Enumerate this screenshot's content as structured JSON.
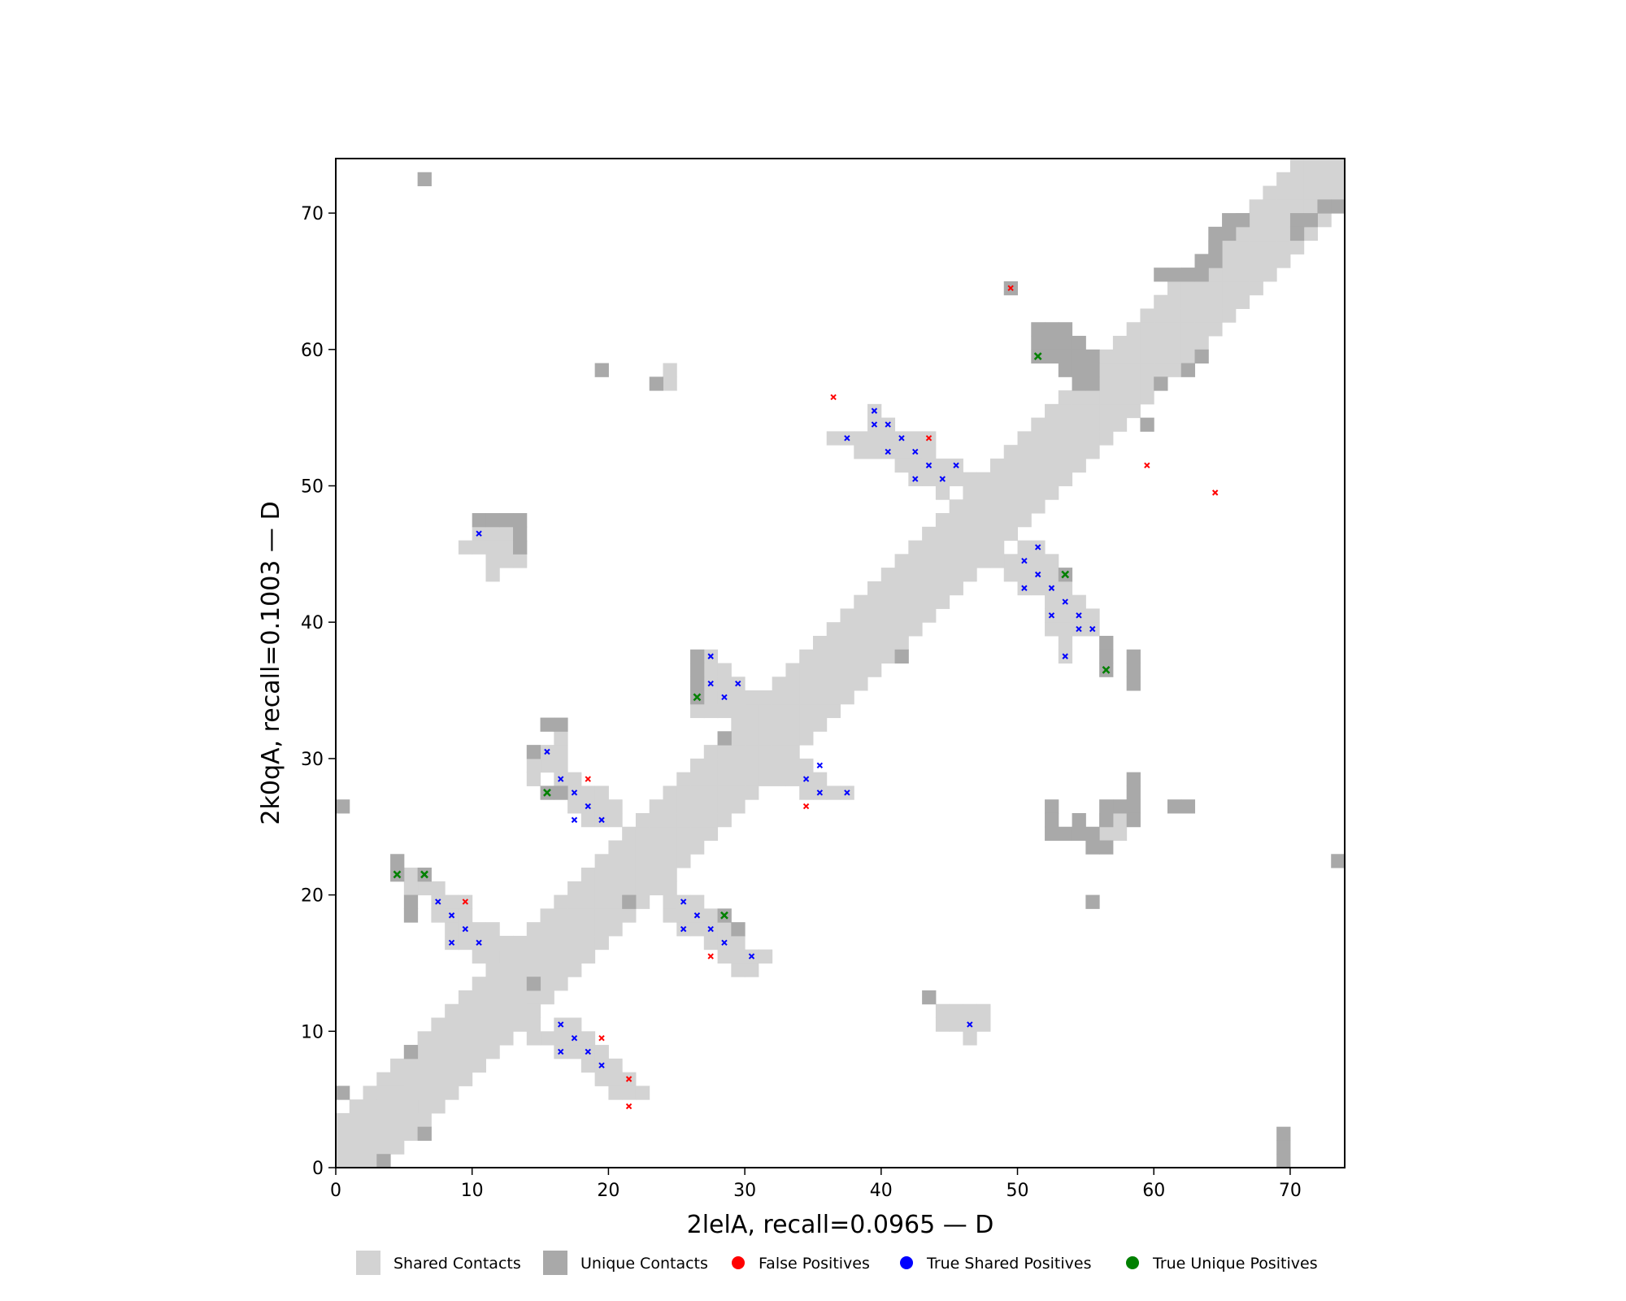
{
  "chart_data": {
    "type": "heatmap",
    "title": "",
    "xlabel": "2lelA, recall=0.0965 — D",
    "ylabel": "2k0qA, recall=0.1003 — D",
    "xlim": [
      0,
      74
    ],
    "ylim": [
      0,
      74
    ],
    "xticks": [
      0,
      10,
      20,
      30,
      40,
      50,
      60,
      70
    ],
    "yticks": [
      0,
      10,
      20,
      30,
      40,
      50,
      60,
      70
    ],
    "colors": {
      "shared": "#d3d3d3",
      "unique": "#a9a9a9",
      "false_positive": "#ff0000",
      "true_shared": "#0000ff",
      "true_unique": "#008000"
    },
    "legend": {
      "placement": "bottom",
      "items": [
        {
          "label": "Shared Contacts",
          "kind": "square",
          "color": "#d3d3d3"
        },
        {
          "label": "Unique Contacts",
          "kind": "square",
          "color": "#a9a9a9"
        },
        {
          "label": "False Positives",
          "kind": "dot",
          "color": "#ff0000"
        },
        {
          "label": "True Shared Positives",
          "kind": "dot",
          "color": "#0000ff"
        },
        {
          "label": "True Unique Positives",
          "kind": "dot",
          "color": "#008000"
        }
      ]
    },
    "diagonal_band": {
      "start": 0,
      "end": 74,
      "half_width": 3
    },
    "shared_contacts": [
      [
        16,
        10
      ],
      [
        17,
        10
      ],
      [
        16,
        9
      ],
      [
        17,
        9
      ],
      [
        18,
        9
      ],
      [
        17,
        8
      ],
      [
        18,
        8
      ],
      [
        19,
        8
      ],
      [
        18,
        7
      ],
      [
        19,
        7
      ],
      [
        20,
        7
      ],
      [
        19,
        6
      ],
      [
        20,
        6
      ],
      [
        21,
        6
      ],
      [
        20,
        5
      ],
      [
        21,
        5
      ],
      [
        22,
        5
      ],
      [
        15,
        9
      ],
      [
        14,
        10
      ],
      [
        14,
        11
      ],
      [
        14,
        9
      ],
      [
        16,
        8
      ],
      [
        10,
        16
      ],
      [
        10,
        17
      ],
      [
        9,
        17
      ],
      [
        9,
        18
      ],
      [
        8,
        18
      ],
      [
        8,
        19
      ],
      [
        7,
        19
      ],
      [
        7,
        20
      ],
      [
        6,
        20
      ],
      [
        6,
        21
      ],
      [
        5,
        21
      ],
      [
        5,
        20
      ],
      [
        8,
        17
      ],
      [
        9,
        16
      ],
      [
        10,
        15
      ],
      [
        11,
        15
      ],
      [
        11,
        16
      ],
      [
        11,
        17
      ],
      [
        12,
        16
      ],
      [
        7,
        18
      ],
      [
        8,
        16
      ],
      [
        9,
        19
      ],
      [
        25,
        19
      ],
      [
        26,
        19
      ],
      [
        25,
        18
      ],
      [
        26,
        18
      ],
      [
        27,
        18
      ],
      [
        25,
        17
      ],
      [
        26,
        17
      ],
      [
        27,
        17
      ],
      [
        28,
        17
      ],
      [
        27,
        16
      ],
      [
        28,
        16
      ],
      [
        29,
        16
      ],
      [
        28,
        15
      ],
      [
        29,
        15
      ],
      [
        30,
        15
      ],
      [
        31,
        15
      ],
      [
        29,
        14
      ],
      [
        30,
        14
      ],
      [
        24,
        18
      ],
      [
        24,
        19
      ],
      [
        24,
        20
      ],
      [
        15,
        30
      ],
      [
        16,
        30
      ],
      [
        15,
        29
      ],
      [
        16,
        29
      ],
      [
        16,
        28
      ],
      [
        17,
        28
      ],
      [
        17,
        27
      ],
      [
        18,
        27
      ],
      [
        17,
        26
      ],
      [
        18,
        26
      ],
      [
        19,
        26
      ],
      [
        18,
        25
      ],
      [
        19,
        25
      ],
      [
        20,
        25
      ],
      [
        14,
        29
      ],
      [
        14,
        28
      ],
      [
        20,
        26
      ],
      [
        19,
        27
      ],
      [
        16,
        31
      ],
      [
        27,
        37
      ],
      [
        27,
        36
      ],
      [
        28,
        36
      ],
      [
        27,
        35
      ],
      [
        28,
        35
      ],
      [
        29,
        35
      ],
      [
        27,
        34
      ],
      [
        28,
        34
      ],
      [
        29,
        34
      ],
      [
        30,
        34
      ],
      [
        28,
        33
      ],
      [
        29,
        33
      ],
      [
        27,
        33
      ],
      [
        26,
        33
      ],
      [
        34,
        29
      ],
      [
        34,
        28
      ],
      [
        35,
        28
      ],
      [
        33,
        28
      ],
      [
        35,
        27
      ],
      [
        36,
        27
      ],
      [
        37,
        27
      ],
      [
        32,
        28
      ],
      [
        32,
        29
      ],
      [
        33,
        29
      ],
      [
        34,
        27
      ],
      [
        37,
        53
      ],
      [
        38,
        53
      ],
      [
        39,
        53
      ],
      [
        39,
        54
      ],
      [
        40,
        54
      ],
      [
        39,
        55
      ],
      [
        40,
        53
      ],
      [
        40,
        52
      ],
      [
        41,
        52
      ],
      [
        41,
        53
      ],
      [
        42,
        53
      ],
      [
        42,
        52
      ],
      [
        42,
        51
      ],
      [
        43,
        51
      ],
      [
        43,
        52
      ],
      [
        43,
        53
      ],
      [
        42,
        50
      ],
      [
        43,
        50
      ],
      [
        44,
        50
      ],
      [
        44,
        51
      ],
      [
        45,
        51
      ],
      [
        45,
        50
      ],
      [
        44,
        49
      ],
      [
        36,
        53
      ],
      [
        38,
        52
      ],
      [
        39,
        52
      ],
      [
        41,
        51
      ],
      [
        46,
        50
      ],
      [
        50,
        45
      ],
      [
        51,
        45
      ],
      [
        50,
        44
      ],
      [
        51,
        44
      ],
      [
        52,
        44
      ],
      [
        50,
        43
      ],
      [
        51,
        43
      ],
      [
        52,
        43
      ],
      [
        50,
        42
      ],
      [
        51,
        42
      ],
      [
        52,
        42
      ],
      [
        53,
        42
      ],
      [
        52,
        41
      ],
      [
        53,
        41
      ],
      [
        54,
        41
      ],
      [
        52,
        40
      ],
      [
        53,
        40
      ],
      [
        54,
        40
      ],
      [
        55,
        40
      ],
      [
        52,
        39
      ],
      [
        53,
        39
      ],
      [
        54,
        39
      ],
      [
        55,
        39
      ],
      [
        53,
        38
      ],
      [
        53,
        37
      ],
      [
        49,
        44
      ],
      [
        49,
        43
      ],
      [
        48,
        44
      ],
      [
        46,
        11
      ],
      [
        47,
        11
      ],
      [
        46,
        10
      ],
      [
        47,
        10
      ],
      [
        46,
        9
      ],
      [
        45,
        11
      ],
      [
        45,
        10
      ],
      [
        44,
        11
      ],
      [
        44,
        10
      ],
      [
        10,
        46
      ],
      [
        11,
        46
      ],
      [
        12,
        46
      ],
      [
        10,
        45
      ],
      [
        11,
        45
      ],
      [
        12,
        45
      ],
      [
        13,
        45
      ],
      [
        11,
        44
      ],
      [
        12,
        44
      ],
      [
        11,
        43
      ],
      [
        9,
        45
      ],
      [
        13,
        44
      ],
      [
        56,
        25
      ],
      [
        57,
        25
      ],
      [
        56,
        24
      ],
      [
        57,
        24
      ],
      [
        24,
        58
      ],
      [
        24,
        57
      ],
      [
        4,
        5
      ],
      [
        5,
        4
      ],
      [
        3,
        5
      ]
    ],
    "unique_contacts": [
      [
        6,
        72
      ],
      [
        19,
        58
      ],
      [
        23,
        57
      ],
      [
        0,
        26
      ],
      [
        0,
        5
      ],
      [
        3,
        0
      ],
      [
        6,
        2
      ],
      [
        5,
        8
      ],
      [
        14,
        13
      ],
      [
        10,
        47
      ],
      [
        11,
        47
      ],
      [
        12,
        47
      ],
      [
        13,
        47
      ],
      [
        13,
        46
      ],
      [
        13,
        45
      ],
      [
        15,
        32
      ],
      [
        16,
        32
      ],
      [
        14,
        30
      ],
      [
        16,
        27
      ],
      [
        15,
        27
      ],
      [
        26,
        37
      ],
      [
        26,
        36
      ],
      [
        26,
        35
      ],
      [
        26,
        34
      ],
      [
        28,
        31
      ],
      [
        21,
        19
      ],
      [
        28,
        18
      ],
      [
        29,
        17
      ],
      [
        4,
        22
      ],
      [
        4,
        21
      ],
      [
        6,
        21
      ],
      [
        5,
        19
      ],
      [
        5,
        18
      ],
      [
        41,
        37
      ],
      [
        53,
        43
      ],
      [
        56,
        38
      ],
      [
        56,
        37
      ],
      [
        56,
        36
      ],
      [
        58,
        37
      ],
      [
        58,
        36
      ],
      [
        58,
        35
      ],
      [
        51,
        61
      ],
      [
        52,
        61
      ],
      [
        53,
        61
      ],
      [
        51,
        60
      ],
      [
        52,
        60
      ],
      [
        53,
        60
      ],
      [
        54,
        60
      ],
      [
        51,
        59
      ],
      [
        52,
        59
      ],
      [
        53,
        59
      ],
      [
        54,
        59
      ],
      [
        55,
        59
      ],
      [
        53,
        58
      ],
      [
        54,
        58
      ],
      [
        55,
        58
      ],
      [
        54,
        57
      ],
      [
        55,
        57
      ],
      [
        59,
        54
      ],
      [
        60,
        57
      ],
      [
        62,
        58
      ],
      [
        63,
        59
      ],
      [
        49,
        64
      ],
      [
        60,
        65
      ],
      [
        61,
        65
      ],
      [
        62,
        65
      ],
      [
        63,
        65
      ],
      [
        63,
        66
      ],
      [
        64,
        66
      ],
      [
        64,
        67
      ],
      [
        64,
        68
      ],
      [
        65,
        68
      ],
      [
        65,
        69
      ],
      [
        66,
        69
      ],
      [
        70,
        69
      ],
      [
        71,
        69
      ],
      [
        70,
        68
      ],
      [
        72,
        70
      ],
      [
        73,
        70
      ],
      [
        52,
        26
      ],
      [
        52,
        25
      ],
      [
        52,
        24
      ],
      [
        53,
        24
      ],
      [
        54,
        24
      ],
      [
        55,
        24
      ],
      [
        55,
        23
      ],
      [
        56,
        23
      ],
      [
        56,
        25
      ],
      [
        57,
        26
      ],
      [
        58,
        26
      ],
      [
        58,
        25
      ],
      [
        58,
        27
      ],
      [
        58,
        28
      ],
      [
        54,
        25
      ],
      [
        56,
        26
      ],
      [
        61,
        26
      ],
      [
        62,
        26
      ],
      [
        55,
        19
      ],
      [
        73,
        22
      ],
      [
        43,
        12
      ],
      [
        69,
        0
      ],
      [
        69,
        1
      ],
      [
        69,
        2
      ]
    ],
    "false_positives": [
      [
        49,
        64
      ],
      [
        36,
        56
      ],
      [
        43,
        53
      ],
      [
        59,
        51
      ],
      [
        64,
        49
      ],
      [
        18,
        28
      ],
      [
        34,
        26
      ],
      [
        9,
        19
      ],
      [
        27,
        15
      ],
      [
        19,
        9
      ],
      [
        21,
        6
      ],
      [
        21,
        4
      ]
    ],
    "true_shared_positives": [
      [
        10,
        46
      ],
      [
        15,
        30
      ],
      [
        16,
        28
      ],
      [
        17,
        27
      ],
      [
        18,
        26
      ],
      [
        17,
        25
      ],
      [
        19,
        25
      ],
      [
        7,
        19
      ],
      [
        8,
        18
      ],
      [
        9,
        17
      ],
      [
        8,
        16
      ],
      [
        10,
        16
      ],
      [
        27,
        37
      ],
      [
        27,
        35
      ],
      [
        28,
        34
      ],
      [
        29,
        35
      ],
      [
        25,
        19
      ],
      [
        26,
        18
      ],
      [
        25,
        17
      ],
      [
        27,
        17
      ],
      [
        28,
        16
      ],
      [
        30,
        15
      ],
      [
        34,
        28
      ],
      [
        35,
        29
      ],
      [
        35,
        27
      ],
      [
        37,
        27
      ],
      [
        16,
        10
      ],
      [
        17,
        9
      ],
      [
        16,
        8
      ],
      [
        18,
        8
      ],
      [
        19,
        7
      ],
      [
        39,
        55
      ],
      [
        39,
        54
      ],
      [
        40,
        54
      ],
      [
        37,
        53
      ],
      [
        41,
        53
      ],
      [
        40,
        52
      ],
      [
        42,
        52
      ],
      [
        43,
        51
      ],
      [
        45,
        51
      ],
      [
        42,
        50
      ],
      [
        44,
        50
      ],
      [
        50,
        44
      ],
      [
        51,
        45
      ],
      [
        51,
        43
      ],
      [
        50,
        42
      ],
      [
        52,
        42
      ],
      [
        53,
        41
      ],
      [
        52,
        40
      ],
      [
        54,
        40
      ],
      [
        54,
        39
      ],
      [
        55,
        39
      ],
      [
        53,
        37
      ],
      [
        46,
        10
      ]
    ],
    "true_unique_positives": [
      [
        51,
        59
      ],
      [
        53,
        43
      ],
      [
        56,
        36
      ],
      [
        26,
        34
      ],
      [
        15,
        27
      ],
      [
        4,
        21
      ],
      [
        6,
        21
      ],
      [
        28,
        18
      ]
    ]
  }
}
